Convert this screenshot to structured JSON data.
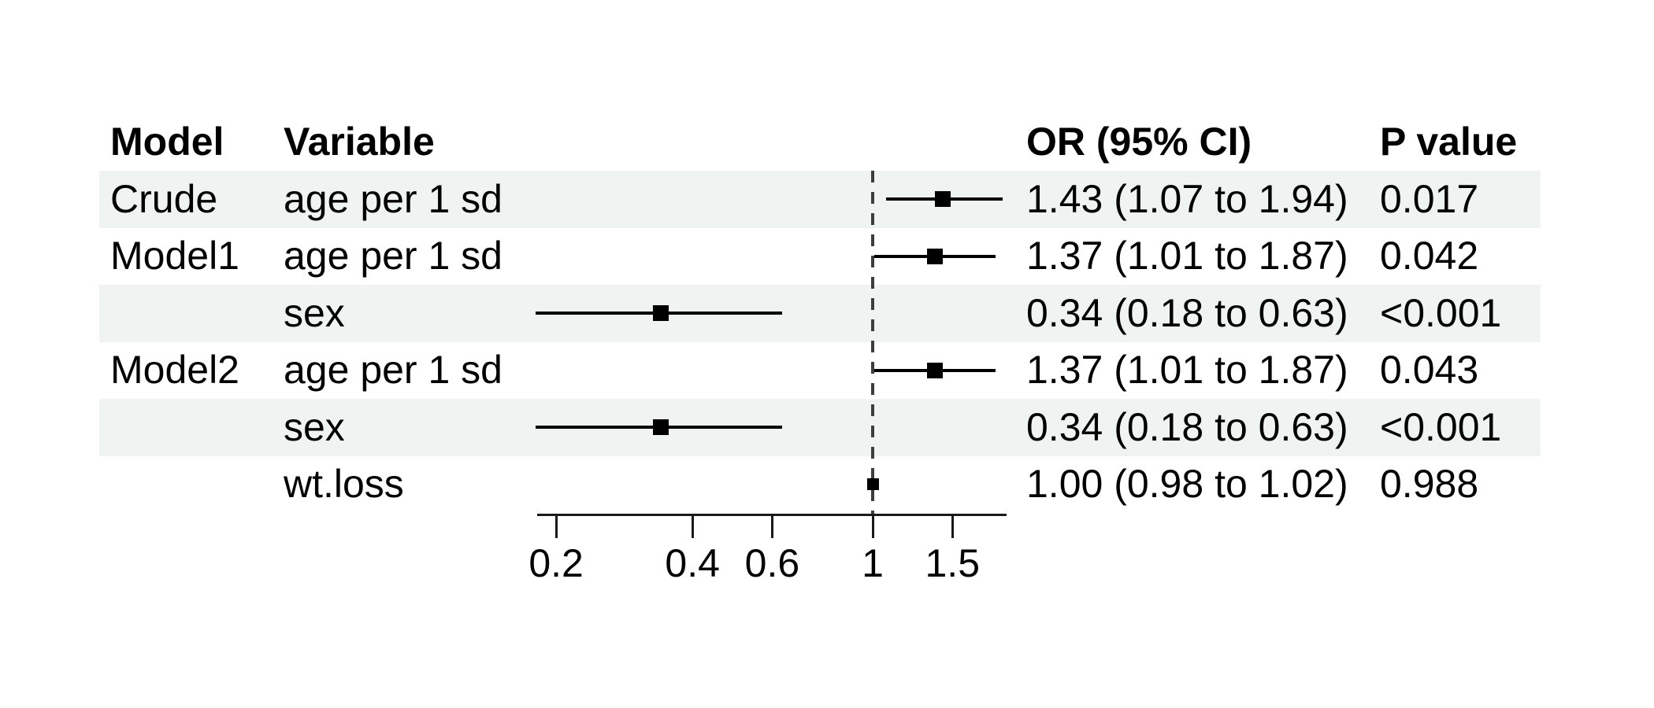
{
  "header": {
    "model": "Model",
    "variable": "Variable",
    "or_ci": "OR (95% CI)",
    "p": "P value"
  },
  "chart_data": {
    "type": "forest",
    "x_scale": "log10",
    "reference_line": 1,
    "x_ticks": {
      "labels": [
        "0.2",
        "0.4",
        "0.6",
        "1",
        "1.5"
      ],
      "values": [
        0.2,
        0.4,
        0.6,
        1,
        1.5
      ]
    },
    "x_axis_range": [
      0.18,
      1.98
    ],
    "columns": [
      "Model",
      "Variable",
      "OR (95% CI)",
      "P value"
    ],
    "rows": [
      {
        "model": "Crude",
        "variable": "age per 1 sd",
        "est": 1.43,
        "lo": 1.07,
        "hi": 1.94,
        "or_ci": "1.43 (1.07 to 1.94)",
        "p": "0.017",
        "striped": true,
        "box_size": 20
      },
      {
        "model": "Model1",
        "variable": "age per 1 sd",
        "est": 1.37,
        "lo": 1.01,
        "hi": 1.87,
        "or_ci": "1.37 (1.01 to 1.87)",
        "p": "0.042",
        "striped": false,
        "box_size": 20
      },
      {
        "model": "",
        "variable": "sex",
        "est": 0.34,
        "lo": 0.18,
        "hi": 0.63,
        "or_ci": "0.34 (0.18 to 0.63)",
        "p": "<0.001",
        "striped": true,
        "box_size": 20
      },
      {
        "model": "Model2",
        "variable": "age per 1 sd",
        "est": 1.37,
        "lo": 1.01,
        "hi": 1.87,
        "or_ci": "1.37 (1.01 to 1.87)",
        "p": "0.043",
        "striped": false,
        "box_size": 20
      },
      {
        "model": "",
        "variable": "sex",
        "est": 0.34,
        "lo": 0.18,
        "hi": 0.63,
        "or_ci": "0.34 (0.18 to 0.63)",
        "p": "<0.001",
        "striped": true,
        "box_size": 20
      },
      {
        "model": "",
        "variable": "wt.loss",
        "est": 1.0,
        "lo": 0.98,
        "hi": 1.02,
        "or_ci": "1.00 (0.98 to 1.02)",
        "p": "0.988",
        "striped": false,
        "box_size": 15
      }
    ]
  },
  "colors": {
    "stripe": "#eff3f2",
    "text": "#000000",
    "ci": "#000000",
    "marker": "#000000",
    "axis": "#1a1a1a",
    "ref_line": "#3d3d3d",
    "background": "#ffffff"
  }
}
